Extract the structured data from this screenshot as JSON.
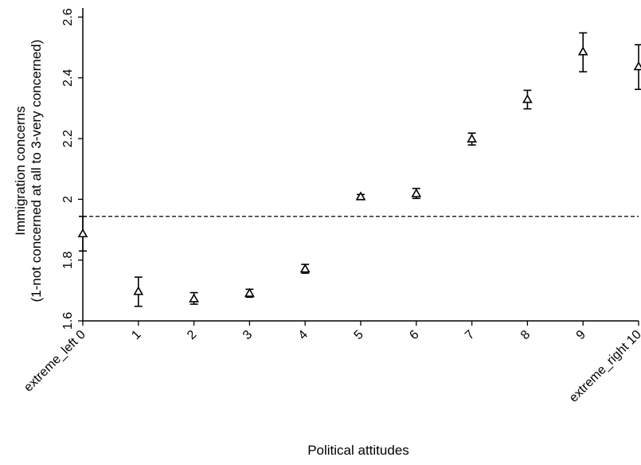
{
  "chart_data": {
    "type": "scatter",
    "title": "",
    "xlabel": "Political attitudes",
    "ylabel_lines": [
      "Immigration concerns",
      "(1-not concerned at all to 3-very concerned)"
    ],
    "x": [
      0,
      1,
      2,
      3,
      4,
      5,
      6,
      7,
      8,
      9,
      10
    ],
    "x_tick_labels": [
      "extreme_left 0",
      "1",
      "2",
      "3",
      "4",
      "5",
      "6",
      "7",
      "8",
      "9",
      "extreme_right 10"
    ],
    "y_ticks": [
      1.6,
      1.8,
      2,
      2.2,
      2.4,
      2.6
    ],
    "y_tick_labels": [
      "1.6",
      "1.8",
      "2",
      "2.2",
      "2.4",
      "2.6"
    ],
    "ylim": [
      1.6,
      2.63
    ],
    "series": [
      {
        "marker": "hollow-triangle",
        "values": [
          1.887,
          1.697,
          1.673,
          1.691,
          1.771,
          2.009,
          2.019,
          2.199,
          2.329,
          2.486,
          2.437
        ],
        "ci_low": [
          1.83,
          1.648,
          1.655,
          1.678,
          1.757,
          1.999,
          2.003,
          2.179,
          2.298,
          2.42,
          2.362
        ],
        "ci_high": [
          1.944,
          1.744,
          1.693,
          1.704,
          1.786,
          2.016,
          2.036,
          2.218,
          2.359,
          2.548,
          2.509
        ]
      }
    ],
    "reference_line": {
      "y": 1.944,
      "style": "dashed"
    },
    "grid": false,
    "legend": "none"
  }
}
